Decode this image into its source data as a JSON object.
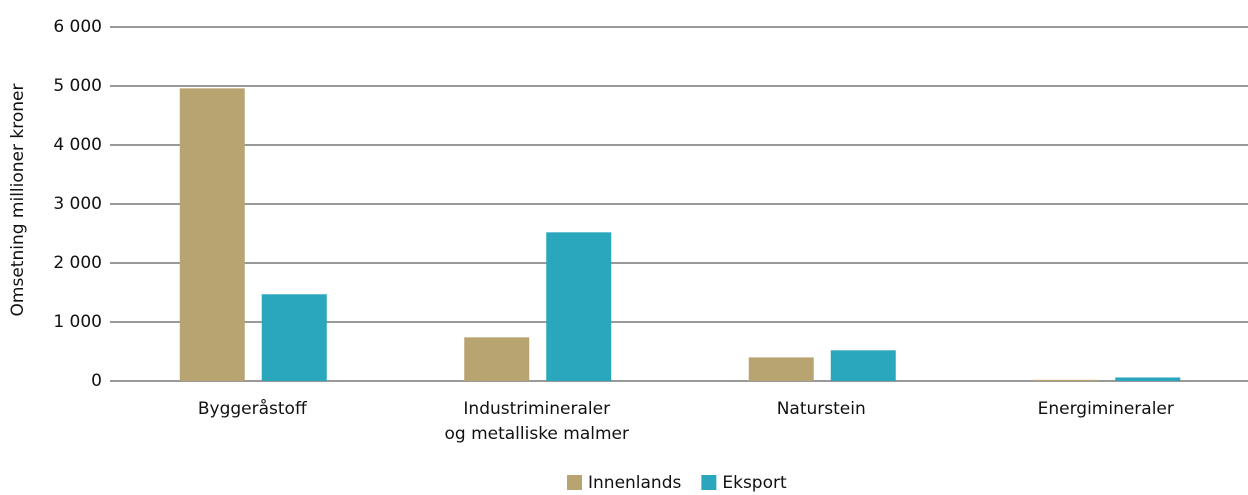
{
  "chart_data": {
    "type": "bar",
    "categories": [
      "Byggeråstoff",
      "Industrimineraler\nog metalliske malmer",
      "Naturstein",
      "Energimineraler"
    ],
    "series": [
      {
        "name": "Innenlands",
        "color": "#b8a470",
        "values": [
          4960,
          740,
          400,
          20
        ]
      },
      {
        "name": "Eksport",
        "color": "#2aa6bd",
        "values": [
          1470,
          2520,
          520,
          60
        ]
      }
    ],
    "ylabel": "Omsetning millioner kroner",
    "ylim": [
      0,
      6000
    ],
    "yticks": [
      0,
      {
        "value": 1000,
        "label": "1 000"
      },
      {
        "value": 2000,
        "label": "2 000"
      },
      {
        "value": 3000,
        "label": "3 000"
      },
      {
        "value": 4000,
        "label": "4 000"
      },
      {
        "value": 5000,
        "label": "5 000"
      },
      {
        "value": 6000,
        "label": "6 000"
      }
    ],
    "grid": true,
    "legend": "bottom"
  }
}
